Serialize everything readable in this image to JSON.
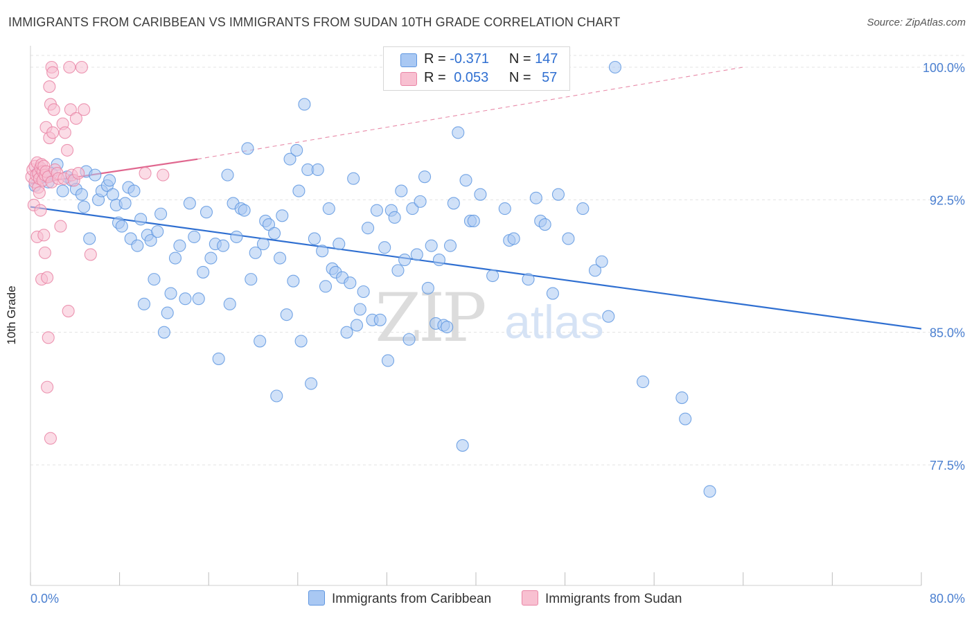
{
  "title": "IMMIGRANTS FROM CARIBBEAN VS IMMIGRANTS FROM SUDAN 10TH GRADE CORRELATION CHART",
  "source": "Source: ZipAtlas.com",
  "watermark": {
    "zip": "ZIP",
    "atlas": "atlas"
  },
  "legend": {
    "r_label": "R =",
    "n_label": "N =",
    "series": [
      {
        "r": "-0.371",
        "n": "147",
        "color": "#a9c8f3",
        "stroke": "#5e96e0"
      },
      {
        "r": "0.053",
        "n": "57",
        "color": "#f8c0d1",
        "stroke": "#e984a5"
      }
    ]
  },
  "bottom_legend": [
    "Immigrants from Caribbean",
    "Immigrants from Sudan"
  ],
  "chart_data": {
    "type": "scatter",
    "title": "IMMIGRANTS FROM CARIBBEAN VS IMMIGRANTS FROM SUDAN 10TH GRADE CORRELATION CHART",
    "xlabel": "",
    "ylabel": "10th Grade",
    "xlim": [
      0,
      80
    ],
    "ylim": [
      70.0,
      100.8
    ],
    "x_tick_labels": [
      "0.0%",
      "80.0%"
    ],
    "y_ticks": [
      77.5,
      85.0,
      92.5,
      100.0
    ],
    "y_tick_labels": [
      "77.5%",
      "85.0%",
      "92.5%",
      "100.0%"
    ],
    "grid": true,
    "legend_position": "top-center",
    "series": [
      {
        "name": "Immigrants from Caribbean",
        "color": "#5e96e0",
        "fill": "#a9c8f3",
        "r": -0.371,
        "n": 147,
        "trend": {
          "x": [
            0,
            80
          ],
          "y": [
            92.1,
            85.2
          ]
        },
        "points": [
          [
            0.4,
            93.3
          ],
          [
            0.6,
            94.0
          ],
          [
            0.9,
            94.3
          ],
          [
            1.3,
            93.8
          ],
          [
            1.6,
            93.5
          ],
          [
            1.9,
            94.0
          ],
          [
            2.4,
            94.5
          ],
          [
            2.9,
            93.0
          ],
          [
            3.3,
            93.8
          ],
          [
            3.7,
            93.6
          ],
          [
            4.1,
            93.1
          ],
          [
            4.6,
            92.8
          ],
          [
            4.8,
            92.1
          ],
          [
            5.0,
            94.1
          ],
          [
            5.3,
            90.3
          ],
          [
            5.8,
            93.9
          ],
          [
            6.1,
            92.5
          ],
          [
            6.4,
            93.0
          ],
          [
            6.9,
            93.3
          ],
          [
            7.1,
            93.6
          ],
          [
            7.4,
            92.8
          ],
          [
            7.7,
            92.2
          ],
          [
            7.9,
            91.2
          ],
          [
            8.2,
            91.0
          ],
          [
            8.5,
            92.3
          ],
          [
            8.8,
            93.2
          ],
          [
            9.0,
            90.3
          ],
          [
            9.3,
            93.0
          ],
          [
            9.6,
            89.9
          ],
          [
            9.9,
            91.4
          ],
          [
            10.2,
            86.6
          ],
          [
            10.5,
            90.5
          ],
          [
            10.8,
            90.2
          ],
          [
            11.1,
            88.0
          ],
          [
            11.4,
            90.7
          ],
          [
            11.7,
            91.7
          ],
          [
            12.0,
            85.0
          ],
          [
            12.3,
            86.1
          ],
          [
            12.6,
            87.2
          ],
          [
            13.0,
            89.2
          ],
          [
            13.4,
            89.9
          ],
          [
            13.9,
            86.9
          ],
          [
            14.3,
            92.3
          ],
          [
            14.7,
            90.4
          ],
          [
            15.1,
            86.9
          ],
          [
            15.5,
            88.4
          ],
          [
            15.8,
            91.8
          ],
          [
            16.2,
            89.2
          ],
          [
            16.6,
            90.0
          ],
          [
            16.9,
            83.5
          ],
          [
            17.3,
            89.9
          ],
          [
            17.7,
            93.9
          ],
          [
            17.9,
            86.6
          ],
          [
            18.2,
            92.3
          ],
          [
            18.5,
            90.4
          ],
          [
            18.9,
            92.0
          ],
          [
            19.2,
            91.9
          ],
          [
            19.5,
            95.4
          ],
          [
            19.8,
            88.0
          ],
          [
            20.2,
            89.5
          ],
          [
            20.6,
            84.5
          ],
          [
            20.9,
            90.0
          ],
          [
            21.1,
            91.3
          ],
          [
            21.4,
            91.1
          ],
          [
            21.9,
            90.6
          ],
          [
            22.1,
            81.4
          ],
          [
            22.4,
            89.2
          ],
          [
            22.6,
            91.6
          ],
          [
            23.0,
            86.0
          ],
          [
            23.3,
            94.8
          ],
          [
            23.6,
            87.9
          ],
          [
            23.9,
            95.3
          ],
          [
            24.1,
            93.0
          ],
          [
            24.3,
            84.5
          ],
          [
            24.6,
            97.9
          ],
          [
            24.9,
            94.2
          ],
          [
            25.2,
            82.1
          ],
          [
            25.5,
            90.3
          ],
          [
            25.8,
            94.2
          ],
          [
            26.2,
            89.6
          ],
          [
            26.5,
            87.6
          ],
          [
            26.8,
            92.0
          ],
          [
            27.1,
            88.6
          ],
          [
            27.4,
            88.4
          ],
          [
            27.7,
            90.0
          ],
          [
            28.0,
            88.1
          ],
          [
            28.4,
            85.0
          ],
          [
            28.7,
            87.8
          ],
          [
            29.0,
            93.7
          ],
          [
            29.3,
            85.4
          ],
          [
            29.6,
            86.3
          ],
          [
            29.9,
            87.3
          ],
          [
            30.3,
            90.9
          ],
          [
            30.7,
            85.7
          ],
          [
            31.1,
            91.9
          ],
          [
            31.4,
            85.7
          ],
          [
            31.8,
            89.8
          ],
          [
            32.1,
            83.4
          ],
          [
            32.4,
            91.9
          ],
          [
            32.7,
            91.5
          ],
          [
            33.0,
            88.5
          ],
          [
            33.3,
            93.0
          ],
          [
            33.6,
            89.1
          ],
          [
            34.0,
            84.6
          ],
          [
            34.3,
            92.0
          ],
          [
            34.7,
            89.4
          ],
          [
            35.0,
            92.4
          ],
          [
            35.4,
            93.8
          ],
          [
            35.7,
            87.5
          ],
          [
            36.0,
            89.9
          ],
          [
            36.4,
            85.5
          ],
          [
            36.7,
            89.1
          ],
          [
            37.1,
            85.4
          ],
          [
            37.4,
            85.3
          ],
          [
            37.7,
            89.9
          ],
          [
            38.0,
            92.3
          ],
          [
            38.4,
            96.3
          ],
          [
            38.8,
            78.6
          ],
          [
            39.1,
            93.6
          ],
          [
            39.5,
            91.3
          ],
          [
            39.8,
            91.3
          ],
          [
            40.4,
            92.8
          ],
          [
            41.5,
            88.2
          ],
          [
            42.6,
            92.0
          ],
          [
            43.0,
            90.2
          ],
          [
            43.4,
            90.3
          ],
          [
            44.7,
            88.0
          ],
          [
            45.4,
            92.6
          ],
          [
            45.8,
            91.3
          ],
          [
            46.2,
            91.1
          ],
          [
            46.9,
            87.2
          ],
          [
            47.4,
            92.8
          ],
          [
            48.3,
            90.3
          ],
          [
            49.6,
            92.0
          ],
          [
            50.7,
            88.5
          ],
          [
            51.3,
            89.0
          ],
          [
            51.9,
            85.9
          ],
          [
            55.0,
            82.2
          ],
          [
            58.5,
            81.3
          ],
          [
            58.8,
            80.1
          ],
          [
            61.0,
            76.0
          ],
          [
            52.5,
            100.0
          ]
        ]
      },
      {
        "name": "Immigrants from Sudan",
        "color": "#e984a5",
        "fill": "#f8c0d1",
        "r": 0.053,
        "n": 57,
        "trend": {
          "x": [
            0,
            15
          ],
          "y": [
            93.4,
            94.8
          ]
        },
        "trend_dashed": {
          "x": [
            15,
            64
          ],
          "y": [
            94.8,
            100.0
          ]
        },
        "points": [
          [
            0.1,
            93.8
          ],
          [
            0.2,
            94.2
          ],
          [
            0.3,
            92.2
          ],
          [
            0.4,
            93.5
          ],
          [
            0.4,
            94.4
          ],
          [
            0.5,
            93.9
          ],
          [
            0.6,
            94.6
          ],
          [
            0.6,
            90.4
          ],
          [
            0.7,
            93.2
          ],
          [
            0.7,
            94.0
          ],
          [
            0.8,
            93.7
          ],
          [
            0.8,
            92.9
          ],
          [
            0.9,
            91.9
          ],
          [
            0.9,
            94.3
          ],
          [
            1.0,
            88.0
          ],
          [
            1.0,
            94.5
          ],
          [
            1.1,
            94.1
          ],
          [
            1.1,
            93.6
          ],
          [
            1.2,
            94.4
          ],
          [
            1.2,
            90.5
          ],
          [
            1.3,
            93.9
          ],
          [
            1.3,
            89.5
          ],
          [
            1.4,
            96.6
          ],
          [
            1.4,
            94.1
          ],
          [
            1.5,
            88.1
          ],
          [
            1.5,
            81.9
          ],
          [
            1.6,
            84.7
          ],
          [
            1.6,
            93.8
          ],
          [
            1.7,
            96.0
          ],
          [
            1.7,
            98.9
          ],
          [
            1.8,
            97.9
          ],
          [
            1.8,
            79.0
          ],
          [
            1.9,
            93.5
          ],
          [
            1.9,
            100.0
          ],
          [
            2.0,
            99.7
          ],
          [
            2.0,
            96.3
          ],
          [
            2.1,
            97.6
          ],
          [
            2.2,
            94.2
          ],
          [
            2.4,
            94.0
          ],
          [
            2.5,
            93.7
          ],
          [
            2.7,
            91.0
          ],
          [
            2.9,
            96.8
          ],
          [
            3.0,
            93.7
          ],
          [
            3.1,
            96.3
          ],
          [
            3.3,
            95.3
          ],
          [
            3.4,
            86.2
          ],
          [
            3.5,
            100.0
          ],
          [
            3.6,
            97.6
          ],
          [
            3.7,
            93.9
          ],
          [
            3.9,
            93.6
          ],
          [
            4.1,
            97.1
          ],
          [
            4.3,
            94.0
          ],
          [
            4.6,
            100.0
          ],
          [
            4.8,
            97.6
          ],
          [
            5.4,
            89.4
          ],
          [
            10.3,
            94.0
          ],
          [
            11.9,
            93.9
          ]
        ]
      }
    ]
  }
}
